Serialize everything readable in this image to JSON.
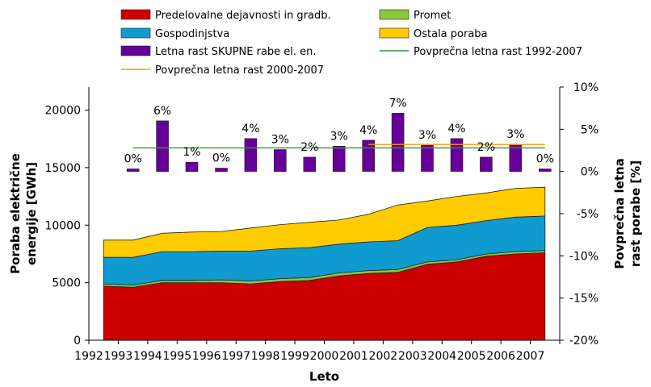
{
  "chart_data": {
    "type": "area",
    "xlabel": "Leto",
    "ylabel_left": "Poraba električne energije [GWh]",
    "ylabel_right": "Povprečna letna rast porabe [%]",
    "ylim_left": [
      0,
      22000
    ],
    "yticks_left": [
      0,
      5000,
      10000,
      15000,
      20000
    ],
    "ylim_right": [
      -20,
      10
    ],
    "yticks_right": [
      -20,
      -15,
      -10,
      -5,
      0,
      5,
      10
    ],
    "yticks_right_labels": [
      "-20%",
      "-15%",
      "-10%",
      "-5%",
      "0%",
      "5%",
      "10%"
    ],
    "categories": [
      "1992",
      "1993",
      "1994",
      "1995",
      "1996",
      "1997",
      "1998",
      "1999",
      "2000",
      "2001",
      "2002",
      "2003",
      "2004",
      "2005",
      "2006",
      "2007"
    ],
    "area_series": [
      {
        "name": "Predelovalne dejavnosti in gradb.",
        "color": "#cc0000",
        "values": [
          4700,
          4600,
          5000,
          5000,
          5000,
          4900,
          5100,
          5200,
          5600,
          5800,
          5900,
          6600,
          6800,
          7300,
          7500,
          7600
        ]
      },
      {
        "name": "Promet",
        "color": "#8cc63f",
        "values": [
          200,
          200,
          200,
          200,
          250,
          250,
          250,
          250,
          250,
          250,
          250,
          200,
          200,
          200,
          200,
          200
        ]
      },
      {
        "name": "Gospodinjstva",
        "color": "#0f9bd0",
        "values": [
          2300,
          2400,
          2500,
          2500,
          2500,
          2600,
          2600,
          2600,
          2500,
          2500,
          2500,
          3000,
          3000,
          2900,
          3000,
          3000
        ]
      },
      {
        "name": "Ostala poraba",
        "color": "#ffcc00",
        "values": [
          1500,
          1500,
          1600,
          1700,
          1700,
          2000,
          2100,
          2200,
          2100,
          2400,
          3100,
          2300,
          2500,
          2400,
          2500,
          2500
        ]
      }
    ],
    "bar_series": {
      "name": "Letna rast SKUPNE rabe el. en.",
      "color": "#660099",
      "values": [
        null,
        0.3,
        6.0,
        1.1,
        0.4,
        3.9,
        2.6,
        1.7,
        3.0,
        3.7,
        6.9,
        3.1,
        3.9,
        1.7,
        3.2,
        0.3
      ],
      "labels": [
        "",
        "0%",
        "6%",
        "1%",
        "0%",
        "4%",
        "3%",
        "2%",
        "3%",
        "4%",
        "7%",
        "3%",
        "4%",
        "2%",
        "3%",
        "0%"
      ]
    },
    "line_series": [
      {
        "name": "Povprečna letna rast 1992-2007",
        "color": "#339933",
        "value": 2.8,
        "from": "1993",
        "to": "2007"
      },
      {
        "name": "Povprečna letna rast 2000-2007",
        "color": "#ff9900",
        "value": 3.2,
        "from": "2001",
        "to": "2007"
      }
    ],
    "legend": [
      {
        "label": "Predelovalne dejavnosti in gradb.",
        "kind": "box",
        "color": "#cc0000"
      },
      {
        "label": "Promet",
        "kind": "box",
        "color": "#8cc63f"
      },
      {
        "label": "Gospodinjstva",
        "kind": "box",
        "color": "#0f9bd0"
      },
      {
        "label": "Ostala poraba",
        "kind": "box",
        "color": "#ffcc00"
      },
      {
        "label": "Letna rast SKUPNE rabe el. en.",
        "kind": "box",
        "color": "#660099"
      },
      {
        "label": "Povprečna letna rast 1992-2007",
        "kind": "line",
        "color": "#339933"
      },
      {
        "label": "Povprečna letna rast 2000-2007",
        "kind": "line",
        "color": "#ff9900"
      }
    ]
  }
}
